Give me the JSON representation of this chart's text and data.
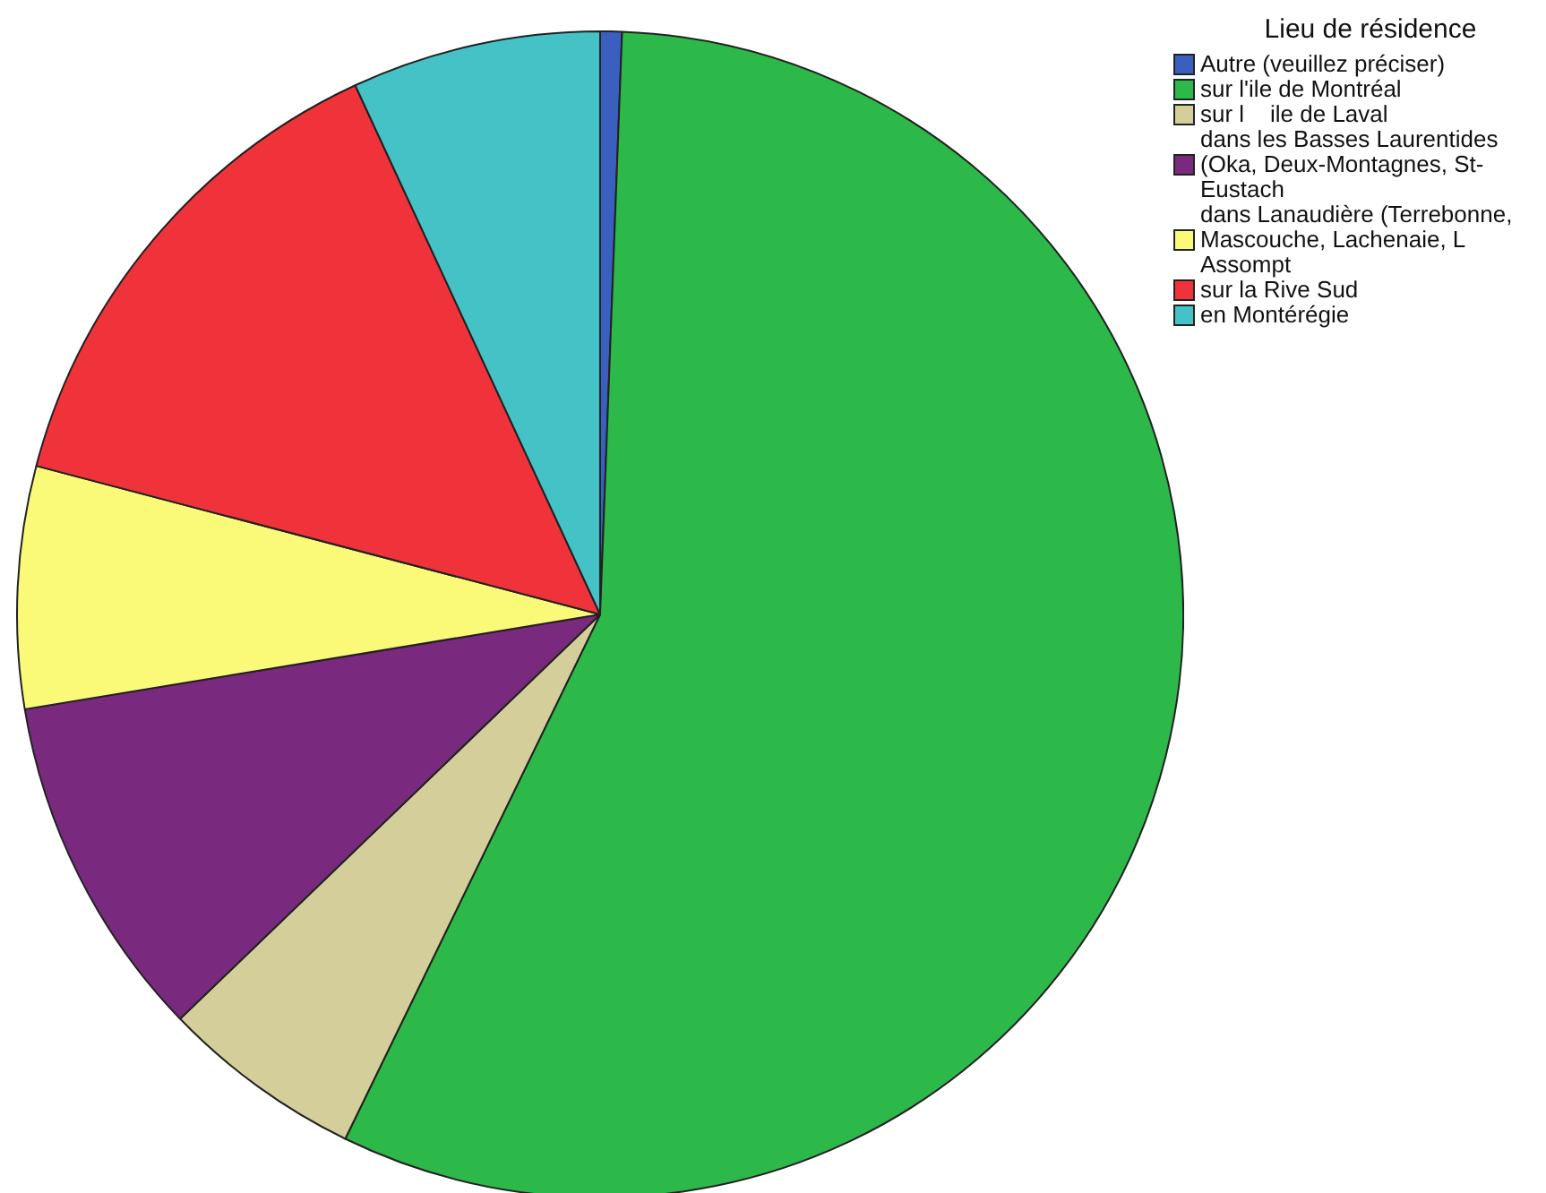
{
  "chart_data": {
    "type": "pie",
    "legend_title": "Lieu de résidence",
    "legend": "top right",
    "categories": [
      "Autre (veuillez préciser)",
      "sur l'ile de Montréal",
      "sur l    ile de Laval",
      "dans les Basses Laurentides (Oka, Deux-Montagnes, St-Eustach",
      "dans Lanaudière (Terrebonne, Mascouche, Lachenaie, L    Assompt",
      "sur la Rive Sud",
      "en Montérégie"
    ],
    "values": [
      0.6,
      56.6,
      5.6,
      9.6,
      6.7,
      14.0,
      6.9
    ],
    "colors": [
      "#3a5fbf",
      "#2db84a",
      "#d4cf9a",
      "#7a2a7e",
      "#fafa78",
      "#f0333b",
      "#45c2c6"
    ]
  }
}
